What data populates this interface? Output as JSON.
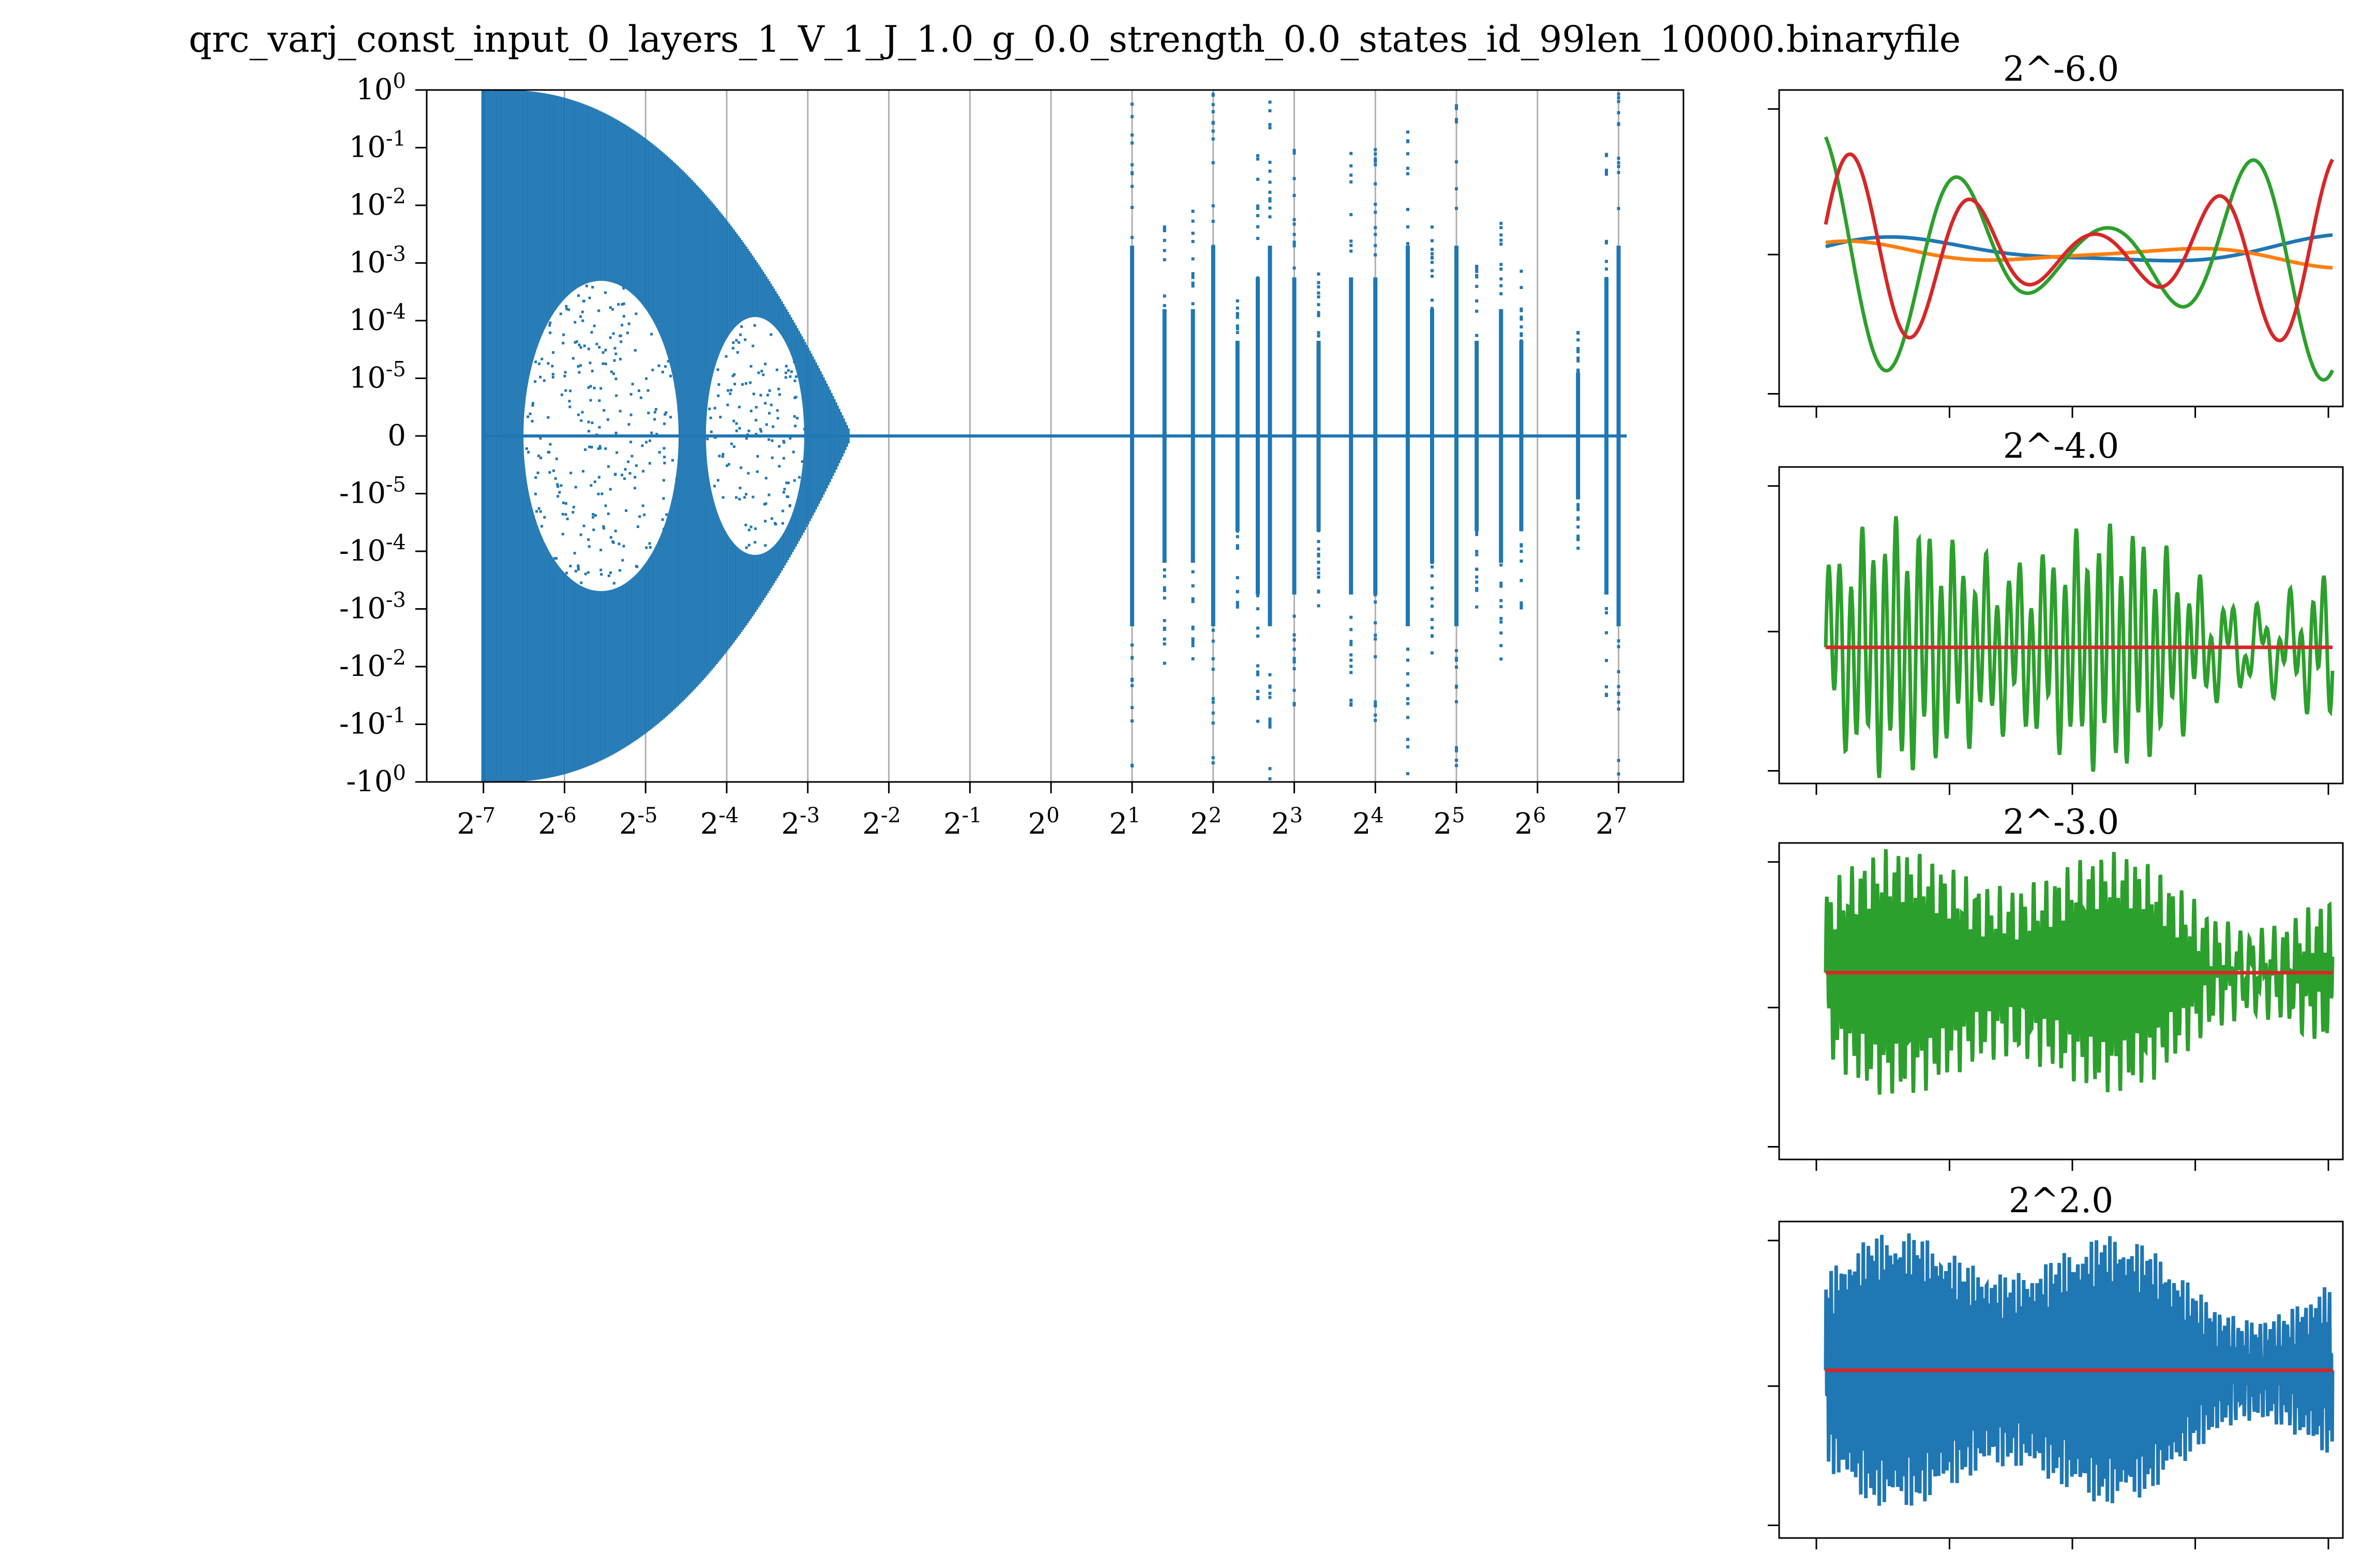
{
  "figure": {
    "title": "qrc_varj_const_input_0_layers_1_V_1_J_1.0_g_0.0_strength_0.0_states_id_99len_10000.binaryfile"
  },
  "colors": {
    "blue": "#1f77b4",
    "orange": "#ff7f0e",
    "green": "#2ca02c",
    "red": "#d62728",
    "grid": "#b0b0b0"
  },
  "chart_data": [
    {
      "type": "scatter",
      "xscale": "log2",
      "yscale": "symlog",
      "xlim": [
        -7.7,
        7.8
      ],
      "ylim": [
        -1,
        1
      ],
      "x_ticks": [
        {
          "base": "2",
          "exp": "-7"
        },
        {
          "base": "2",
          "exp": "-6"
        },
        {
          "base": "2",
          "exp": "-5"
        },
        {
          "base": "2",
          "exp": "-4"
        },
        {
          "base": "2",
          "exp": "-3"
        },
        {
          "base": "2",
          "exp": "-2"
        },
        {
          "base": "2",
          "exp": "-1"
        },
        {
          "base": "2",
          "exp": "0"
        },
        {
          "base": "2",
          "exp": "1"
        },
        {
          "base": "2",
          "exp": "2"
        },
        {
          "base": "2",
          "exp": "3"
        },
        {
          "base": "2",
          "exp": "4"
        },
        {
          "base": "2",
          "exp": "5"
        },
        {
          "base": "2",
          "exp": "6"
        },
        {
          "base": "2",
          "exp": "7"
        }
      ],
      "y_ticks": [
        {
          "base": "10",
          "exp": "0",
          "sign": ""
        },
        {
          "base": "10",
          "exp": "-1",
          "sign": ""
        },
        {
          "base": "10",
          "exp": "-2",
          "sign": ""
        },
        {
          "base": "10",
          "exp": "-3",
          "sign": ""
        },
        {
          "base": "10",
          "exp": "-4",
          "sign": ""
        },
        {
          "base": "10",
          "exp": "-5",
          "sign": ""
        },
        {
          "base": "0",
          "exp": "",
          "sign": ""
        },
        {
          "base": "10",
          "exp": "-5",
          "sign": "-"
        },
        {
          "base": "10",
          "exp": "-4",
          "sign": "-"
        },
        {
          "base": "10",
          "exp": "-3",
          "sign": "-"
        },
        {
          "base": "10",
          "exp": "-2",
          "sign": "-"
        },
        {
          "base": "10",
          "exp": "-1",
          "sign": "-"
        },
        {
          "base": "10",
          "exp": "0",
          "sign": "-"
        }
      ],
      "grid": "vertical",
      "dense_region": {
        "x_log2_range": [
          -7,
          -2.5
        ],
        "amplitude": "up to 10^0"
      },
      "spikes_x_log2": [
        1.0,
        1.4,
        1.75,
        2.0,
        2.3,
        2.55,
        2.7,
        3.0,
        3.3,
        3.7,
        4.0,
        4.4,
        4.7,
        5.0,
        5.25,
        5.55,
        5.8,
        6.5,
        6.85,
        7.0
      ],
      "spikes_ymax_decades": [
        0,
        -2,
        -2,
        0,
        -3,
        -1,
        0,
        -1,
        -3,
        -1,
        -1,
        0,
        -2,
        0,
        -3,
        -2,
        -3,
        -4,
        -1,
        0
      ]
    },
    {
      "type": "line",
      "title": "2^-6.0",
      "series": [
        {
          "color": "blue",
          "amp": 0.15,
          "freq": 2.3,
          "phase": 0.4
        },
        {
          "color": "orange",
          "amp": 0.1,
          "freq": 3.1,
          "phase": 1.1
        },
        {
          "color": "green",
          "amp": 0.95,
          "freq": 7.0,
          "phase": 2.0
        },
        {
          "color": "red",
          "amp": 0.75,
          "freq": 8.3,
          "phase": 0.3
        }
      ]
    },
    {
      "type": "line",
      "title": "2^-4.0",
      "series": [
        {
          "color": "green",
          "amp": 0.85,
          "freq": 45,
          "phase": 0.0
        },
        {
          "color": "red",
          "amp": 0.0,
          "freq": 0,
          "phase": 0.0
        }
      ]
    },
    {
      "type": "line",
      "title": "2^-3.0",
      "series": [
        {
          "color": "green",
          "amp": 0.8,
          "freq": 120,
          "phase": 0.0
        },
        {
          "color": "red",
          "amp": 0.0,
          "freq": 0,
          "phase": 0.0
        }
      ]
    },
    {
      "type": "line",
      "title": "2^2.0",
      "series": [
        {
          "color": "blue",
          "amp": 0.9,
          "freq": 300,
          "phase": 0.0
        },
        {
          "color": "red",
          "amp": 0.0,
          "freq": 0,
          "phase": 0.0
        }
      ]
    }
  ]
}
